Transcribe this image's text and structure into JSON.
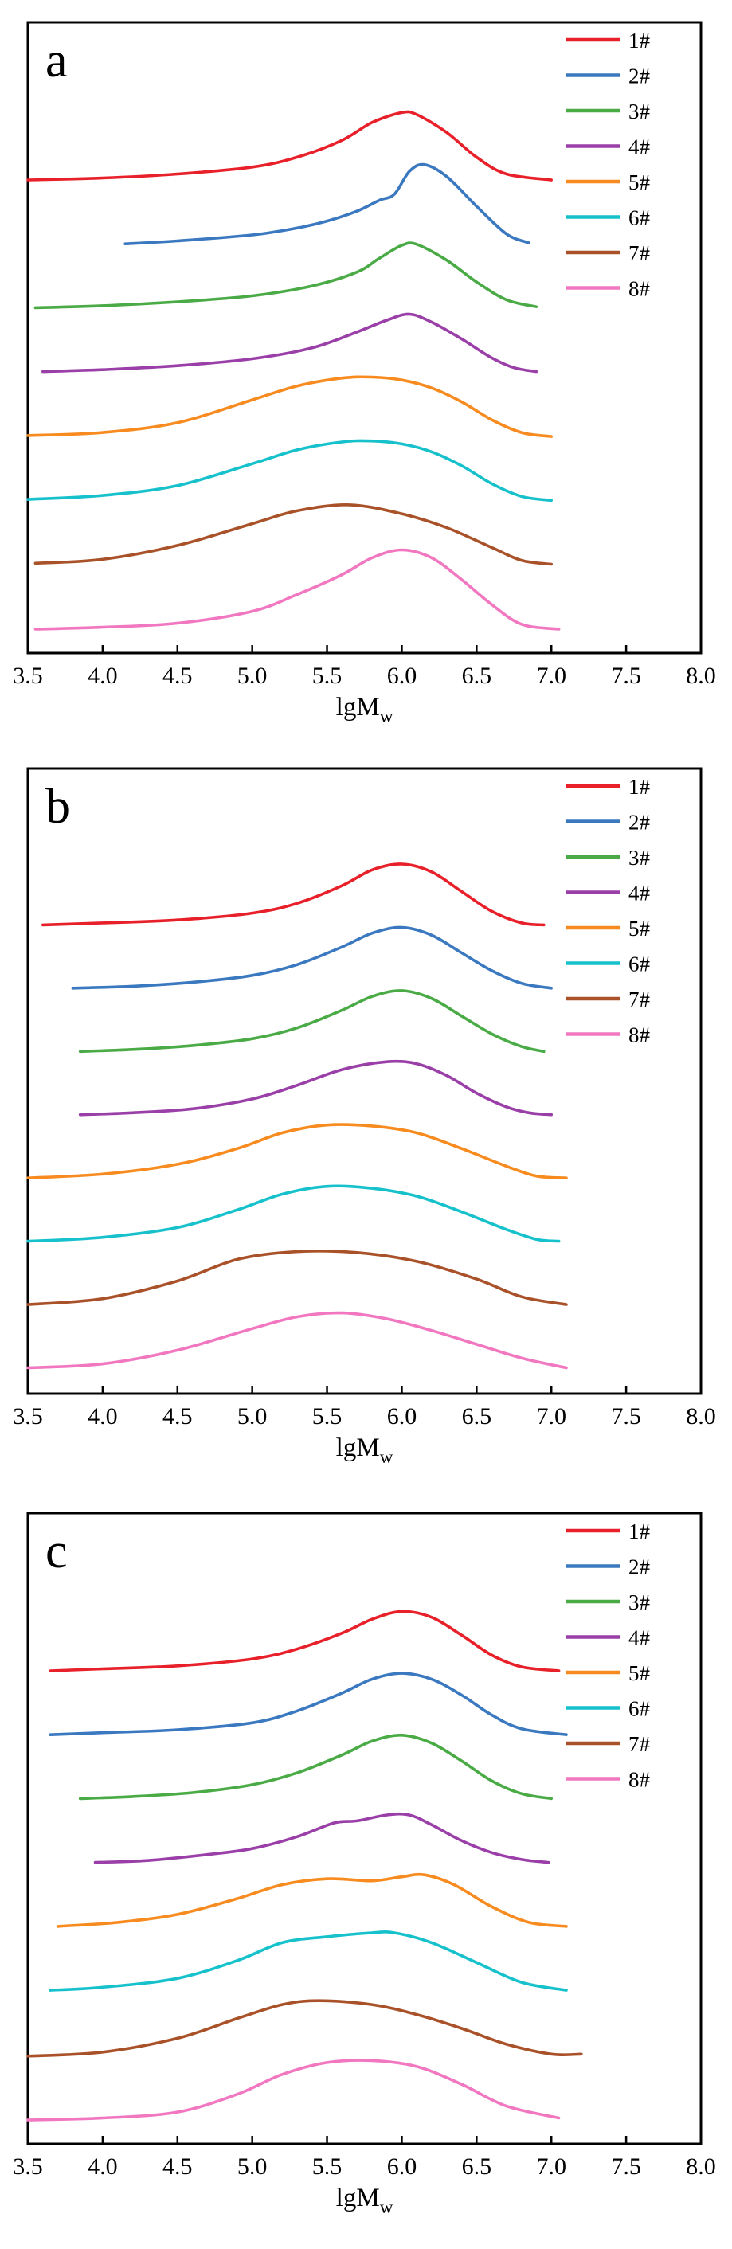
{
  "chart_data": [
    {
      "type": "line",
      "panel_label": "a",
      "xlabel": "lgM",
      "xlabel_sub": "w",
      "ylabel": "",
      "xlim": [
        3.5,
        8.0
      ],
      "xticks": [
        "3.5",
        "4.0",
        "4.5",
        "5.0",
        "5.5",
        "6.0",
        "6.5",
        "7.0",
        "7.5",
        "8.0"
      ],
      "y_ticks_shown": false,
      "legend_position": "top-right",
      "series": [
        {
          "name": "1#",
          "color": "#e8202a",
          "offset": 7,
          "x": [
            3.5,
            4.0,
            4.5,
            5.0,
            5.3,
            5.6,
            5.8,
            6.0,
            6.1,
            6.3,
            6.5,
            6.7,
            7.0
          ],
          "y": [
            0.02,
            0.04,
            0.08,
            0.15,
            0.25,
            0.42,
            0.6,
            0.7,
            0.68,
            0.5,
            0.25,
            0.08,
            0.02
          ]
        },
        {
          "name": "2#",
          "color": "#3a78bf",
          "offset": 6,
          "x": [
            4.15,
            4.5,
            5.0,
            5.3,
            5.5,
            5.7,
            5.85,
            5.95,
            6.05,
            6.15,
            6.3,
            6.5,
            6.7,
            6.85
          ],
          "y": [
            0.02,
            0.05,
            0.11,
            0.18,
            0.25,
            0.35,
            0.46,
            0.52,
            0.75,
            0.82,
            0.7,
            0.4,
            0.12,
            0.03
          ]
        },
        {
          "name": "3#",
          "color": "#4aab46",
          "offset": 5,
          "x": [
            3.55,
            4.0,
            4.5,
            5.0,
            5.4,
            5.7,
            5.85,
            6.0,
            6.1,
            6.3,
            6.5,
            6.7,
            6.9
          ],
          "y": [
            0.02,
            0.04,
            0.08,
            0.14,
            0.24,
            0.38,
            0.52,
            0.65,
            0.66,
            0.5,
            0.28,
            0.1,
            0.03
          ]
        },
        {
          "name": "4#",
          "color": "#9a3fa8",
          "offset": 4,
          "x": [
            3.6,
            4.0,
            4.5,
            5.0,
            5.4,
            5.7,
            5.9,
            6.05,
            6.2,
            6.4,
            6.6,
            6.75,
            6.9
          ],
          "y": [
            0.02,
            0.04,
            0.08,
            0.15,
            0.26,
            0.42,
            0.54,
            0.6,
            0.52,
            0.35,
            0.16,
            0.06,
            0.02
          ]
        },
        {
          "name": "5#",
          "color": "#f78b1f",
          "offset": 3,
          "x": [
            3.5,
            4.0,
            4.5,
            5.0,
            5.3,
            5.6,
            5.8,
            6.0,
            6.2,
            6.4,
            6.6,
            6.8,
            7.0
          ],
          "y": [
            0.02,
            0.05,
            0.15,
            0.38,
            0.52,
            0.6,
            0.61,
            0.58,
            0.5,
            0.36,
            0.18,
            0.05,
            0.01
          ]
        },
        {
          "name": "6#",
          "color": "#17c1cc",
          "offset": 2,
          "x": [
            3.5,
            4.0,
            4.5,
            5.0,
            5.3,
            5.6,
            5.8,
            6.0,
            6.2,
            6.4,
            6.6,
            6.8,
            7.0
          ],
          "y": [
            0.02,
            0.06,
            0.16,
            0.38,
            0.52,
            0.6,
            0.61,
            0.58,
            0.5,
            0.36,
            0.18,
            0.05,
            0.01
          ]
        },
        {
          "name": "7#",
          "color": "#a9522a",
          "offset": 1,
          "x": [
            3.55,
            4.0,
            4.5,
            5.0,
            5.3,
            5.65,
            6.0,
            6.3,
            6.6,
            6.8,
            7.0
          ],
          "y": [
            0.02,
            0.06,
            0.2,
            0.42,
            0.55,
            0.61,
            0.52,
            0.38,
            0.18,
            0.05,
            0.01
          ]
        },
        {
          "name": "8#",
          "color": "#f178c0",
          "offset": 0,
          "x": [
            3.55,
            4.0,
            4.5,
            5.0,
            5.3,
            5.6,
            5.8,
            6.0,
            6.2,
            6.4,
            6.6,
            6.8,
            7.05
          ],
          "y": [
            0.0,
            0.02,
            0.06,
            0.18,
            0.35,
            0.55,
            0.72,
            0.8,
            0.72,
            0.5,
            0.25,
            0.05,
            0.0
          ]
        }
      ]
    },
    {
      "type": "line",
      "panel_label": "b",
      "xlabel": "lgM",
      "xlabel_sub": "w",
      "ylabel": "",
      "xlim": [
        3.5,
        8.0
      ],
      "xticks": [
        "3.5",
        "4.0",
        "4.5",
        "5.0",
        "5.5",
        "6.0",
        "6.5",
        "7.0",
        "7.5",
        "8.0"
      ],
      "y_ticks_shown": false,
      "legend_position": "top-right",
      "series": [
        {
          "name": "1#",
          "color": "#e8202a",
          "offset": 7,
          "x": [
            3.6,
            4.0,
            4.5,
            5.0,
            5.3,
            5.6,
            5.8,
            6.0,
            6.2,
            6.4,
            6.6,
            6.8,
            6.95
          ],
          "y": [
            0.02,
            0.04,
            0.07,
            0.14,
            0.24,
            0.42,
            0.58,
            0.64,
            0.56,
            0.36,
            0.16,
            0.04,
            0.02
          ]
        },
        {
          "name": "2#",
          "color": "#3a78bf",
          "offset": 6,
          "x": [
            3.8,
            4.2,
            4.6,
            5.0,
            5.3,
            5.6,
            5.8,
            6.0,
            6.2,
            6.4,
            6.6,
            6.8,
            7.0
          ],
          "y": [
            0.02,
            0.04,
            0.08,
            0.15,
            0.26,
            0.44,
            0.58,
            0.64,
            0.56,
            0.38,
            0.2,
            0.07,
            0.02
          ]
        },
        {
          "name": "3#",
          "color": "#4aab46",
          "offset": 5,
          "x": [
            3.85,
            4.2,
            4.6,
            5.0,
            5.3,
            5.6,
            5.8,
            6.0,
            6.2,
            6.4,
            6.6,
            6.8,
            6.95
          ],
          "y": [
            0.02,
            0.04,
            0.08,
            0.15,
            0.26,
            0.44,
            0.58,
            0.64,
            0.56,
            0.38,
            0.2,
            0.07,
            0.02
          ]
        },
        {
          "name": "4#",
          "color": "#9a3fa8",
          "offset": 4,
          "x": [
            3.85,
            4.2,
            4.6,
            5.0,
            5.3,
            5.6,
            5.9,
            6.1,
            6.3,
            6.5,
            6.7,
            6.85,
            7.0
          ],
          "y": [
            0.02,
            0.04,
            0.08,
            0.18,
            0.32,
            0.48,
            0.56,
            0.54,
            0.42,
            0.24,
            0.1,
            0.04,
            0.02
          ]
        },
        {
          "name": "5#",
          "color": "#f78b1f",
          "offset": 3,
          "x": [
            3.5,
            4.0,
            4.5,
            4.9,
            5.2,
            5.5,
            5.8,
            6.1,
            6.4,
            6.7,
            6.9,
            7.1
          ],
          "y": [
            0.02,
            0.06,
            0.16,
            0.32,
            0.48,
            0.56,
            0.55,
            0.48,
            0.32,
            0.14,
            0.04,
            0.02
          ]
        },
        {
          "name": "6#",
          "color": "#17c1cc",
          "offset": 2,
          "x": [
            3.5,
            4.0,
            4.5,
            4.9,
            5.2,
            5.5,
            5.8,
            6.1,
            6.4,
            6.7,
            6.9,
            7.05
          ],
          "y": [
            0.02,
            0.06,
            0.16,
            0.34,
            0.5,
            0.58,
            0.56,
            0.48,
            0.32,
            0.14,
            0.04,
            0.02
          ]
        },
        {
          "name": "7#",
          "color": "#a9522a",
          "offset": 1,
          "x": [
            3.5,
            4.0,
            4.5,
            4.9,
            5.3,
            5.7,
            6.1,
            6.5,
            6.8,
            7.1
          ],
          "y": [
            0.02,
            0.08,
            0.26,
            0.48,
            0.56,
            0.55,
            0.46,
            0.28,
            0.1,
            0.02
          ]
        },
        {
          "name": "8#",
          "color": "#f178c0",
          "offset": 0,
          "x": [
            3.5,
            4.0,
            4.5,
            5.0,
            5.3,
            5.6,
            5.9,
            6.2,
            6.5,
            6.8,
            7.1
          ],
          "y": [
            0.02,
            0.06,
            0.2,
            0.42,
            0.54,
            0.58,
            0.52,
            0.4,
            0.26,
            0.12,
            0.02
          ]
        }
      ]
    },
    {
      "type": "line",
      "panel_label": "c",
      "xlabel": "lgM",
      "xlabel_sub": "w",
      "ylabel": "",
      "xlim": [
        3.5,
        8.0
      ],
      "xticks": [
        "3.5",
        "4.0",
        "4.5",
        "5.0",
        "5.5",
        "6.0",
        "6.5",
        "7.0",
        "7.5",
        "8.0"
      ],
      "y_ticks_shown": false,
      "legend_position": "top-right",
      "series": [
        {
          "name": "1#",
          "color": "#e8202a",
          "offset": 7,
          "x": [
            3.65,
            4.0,
            4.5,
            5.0,
            5.3,
            5.6,
            5.8,
            6.0,
            6.2,
            6.4,
            6.6,
            6.8,
            7.05
          ],
          "y": [
            0.02,
            0.04,
            0.07,
            0.14,
            0.24,
            0.4,
            0.54,
            0.62,
            0.56,
            0.38,
            0.18,
            0.06,
            0.02
          ]
        },
        {
          "name": "2#",
          "color": "#3a78bf",
          "offset": 6,
          "x": [
            3.65,
            4.0,
            4.5,
            5.0,
            5.3,
            5.6,
            5.8,
            6.0,
            6.2,
            6.4,
            6.6,
            6.8,
            7.1
          ],
          "y": [
            0.02,
            0.04,
            0.07,
            0.14,
            0.26,
            0.44,
            0.58,
            0.64,
            0.58,
            0.42,
            0.22,
            0.08,
            0.02
          ]
        },
        {
          "name": "3#",
          "color": "#4aab46",
          "offset": 5,
          "x": [
            3.85,
            4.2,
            4.6,
            5.0,
            5.3,
            5.6,
            5.8,
            6.0,
            6.2,
            6.4,
            6.6,
            6.8,
            7.0
          ],
          "y": [
            0.02,
            0.04,
            0.08,
            0.16,
            0.28,
            0.46,
            0.6,
            0.66,
            0.58,
            0.4,
            0.2,
            0.07,
            0.02
          ]
        },
        {
          "name": "4#",
          "color": "#9a3fa8",
          "offset": 4,
          "x": [
            3.95,
            4.3,
            4.7,
            5.0,
            5.3,
            5.55,
            5.7,
            5.9,
            6.05,
            6.2,
            6.4,
            6.6,
            6.8,
            6.98
          ],
          "y": [
            0.02,
            0.04,
            0.1,
            0.16,
            0.28,
            0.42,
            0.44,
            0.5,
            0.5,
            0.4,
            0.24,
            0.12,
            0.05,
            0.02
          ]
        },
        {
          "name": "5#",
          "color": "#f78b1f",
          "offset": 3,
          "x": [
            3.7,
            4.1,
            4.5,
            4.9,
            5.2,
            5.5,
            5.8,
            6.0,
            6.15,
            6.35,
            6.6,
            6.85,
            7.1
          ],
          "y": [
            0.02,
            0.06,
            0.14,
            0.3,
            0.44,
            0.5,
            0.48,
            0.52,
            0.54,
            0.44,
            0.22,
            0.06,
            0.02
          ]
        },
        {
          "name": "6#",
          "color": "#17c1cc",
          "offset": 2,
          "x": [
            3.65,
            4.0,
            4.5,
            4.9,
            5.2,
            5.5,
            5.8,
            5.95,
            6.2,
            6.5,
            6.8,
            7.1
          ],
          "y": [
            0.02,
            0.05,
            0.14,
            0.32,
            0.5,
            0.56,
            0.6,
            0.6,
            0.5,
            0.3,
            0.1,
            0.02
          ]
        },
        {
          "name": "7#",
          "color": "#a9522a",
          "offset": 1,
          "x": [
            3.5,
            4.0,
            4.5,
            4.9,
            5.2,
            5.45,
            5.8,
            6.1,
            6.4,
            6.7,
            7.0,
            7.2
          ],
          "y": [
            0.0,
            0.04,
            0.18,
            0.38,
            0.52,
            0.56,
            0.52,
            0.42,
            0.28,
            0.12,
            0.02,
            0.02
          ]
        },
        {
          "name": "8#",
          "color": "#f178c0",
          "offset": 0,
          "x": [
            3.5,
            4.0,
            4.5,
            4.9,
            5.2,
            5.5,
            5.8,
            6.1,
            6.4,
            6.7,
            7.05
          ],
          "y": [
            0.0,
            0.02,
            0.08,
            0.26,
            0.46,
            0.58,
            0.6,
            0.54,
            0.36,
            0.14,
            0.02
          ]
        }
      ]
    }
  ]
}
